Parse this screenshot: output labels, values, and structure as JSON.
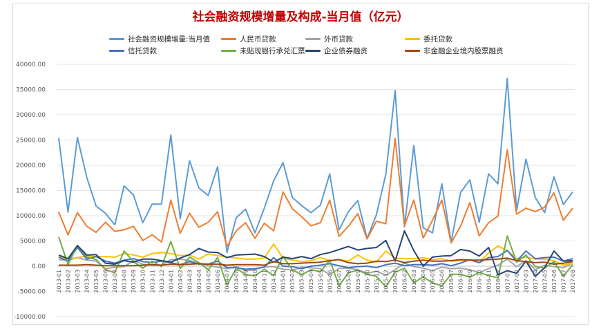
{
  "chart_data": {
    "type": "line",
    "title": "社会融资规模增量及构成-当月值（亿元）",
    "ylim": [
      -10000,
      40000
    ],
    "yticks": [
      "-10000.00",
      "-5000.00",
      "0.00",
      "5000.00",
      "10000.00",
      "15000.00",
      "20000.00",
      "25000.00",
      "30000.00",
      "35000.00",
      "40000.00"
    ],
    "ytick_values": [
      -10000,
      -5000,
      0,
      5000,
      10000,
      15000,
      20000,
      25000,
      30000,
      35000,
      40000
    ],
    "grid": true,
    "legend_position": "top",
    "categories": [
      "2013-01",
      "2013-02",
      "2013-03",
      "2013-04",
      "2013-05",
      "2013-06",
      "2013-07",
      "2013-08",
      "2013-09",
      "2013-10",
      "2013-11",
      "2013-12",
      "2014-01",
      "2014-02",
      "2014-03",
      "2014-04",
      "2014-05",
      "2014-06",
      "2014-07",
      "2014-08",
      "2014-09",
      "2014-10",
      "2014-11",
      "2014-12",
      "2015-01",
      "2015-02",
      "2015-03",
      "2015-04",
      "2015-05",
      "2015-06",
      "2015-07",
      "2015-08",
      "2015-09",
      "2015-10",
      "2015-11",
      "2015-12",
      "2016-01",
      "2016-02",
      "2016-03",
      "2016-04",
      "2016-05",
      "2016-06",
      "2016-07",
      "2016-08",
      "2016-09",
      "2016-10",
      "2016-11",
      "2016-12",
      "2017-01",
      "2017-02",
      "2017-03",
      "2017-04",
      "2017-05",
      "2017-06",
      "2017-07",
      "2017-08"
    ],
    "series": [
      {
        "name": "社会融资规模增量:当月值",
        "color": "#5b9bd5",
        "values": [
          25400,
          10700,
          25500,
          17600,
          11900,
          10500,
          8200,
          15900,
          14100,
          8600,
          12300,
          12300,
          26000,
          9400,
          20900,
          15500,
          14000,
          19700,
          2700,
          9600,
          11300,
          6600,
          11500,
          16900,
          20500,
          13600,
          12000,
          10600,
          12100,
          18300,
          7200,
          10800,
          13000,
          5500,
          10200,
          18200,
          34800,
          7800,
          23900,
          7600,
          6600,
          16300,
          4800,
          14600,
          17100,
          8700,
          18300,
          16300,
          37200,
          11000,
          21200,
          13600,
          10600,
          17700,
          12200,
          14700
        ]
      },
      {
        "name": "人民币贷款",
        "color": "#ed7d31",
        "values": [
          10700,
          6200,
          10600,
          7900,
          6700,
          8700,
          6900,
          7200,
          7900,
          5100,
          6200,
          4800,
          13100,
          6500,
          10500,
          7700,
          8700,
          10800,
          3900,
          7000,
          8600,
          5500,
          8500,
          7000,
          14700,
          11400,
          9800,
          8000,
          8600,
          13100,
          5900,
          7900,
          10400,
          5400,
          8900,
          8400,
          25300,
          8000,
          13100,
          5600,
          9100,
          13100,
          4600,
          7900,
          12600,
          6000,
          8600,
          9900,
          23100,
          10300,
          11500,
          10800,
          11700,
          14500,
          9100,
          11500
        ]
      },
      {
        "name": "外币贷款",
        "color": "#a5a5a5",
        "values": [
          1300,
          1200,
          1700,
          1200,
          1000,
          -500,
          -200,
          -100,
          1100,
          400,
          200,
          200,
          1300,
          1400,
          1100,
          600,
          100,
          -200,
          -500,
          -100,
          -900,
          -700,
          -100,
          -100,
          -600,
          -800,
          -200,
          -300,
          -500,
          -1700,
          -400,
          -400,
          -700,
          -1400,
          -1000,
          -1800,
          -700,
          600,
          -100,
          -400,
          -900,
          -200,
          -500,
          -400,
          -700,
          -1300,
          -500,
          200,
          1400,
          -100,
          1100,
          -700,
          200,
          -100,
          -300,
          600
        ]
      },
      {
        "name": "委托贷款",
        "color": "#ffc000",
        "values": [
          1900,
          1400,
          1700,
          2000,
          1900,
          1900,
          1800,
          2500,
          2200,
          1800,
          2500,
          2700,
          2500,
          2100,
          2200,
          1400,
          2400,
          2100,
          1800,
          1600,
          1400,
          1400,
          1600,
          4400,
          1600,
          1200,
          900,
          1100,
          1700,
          1100,
          1300,
          1000,
          2200,
          1200,
          800,
          3000,
          1600,
          1500,
          1500,
          1700,
          1300,
          1500,
          1000,
          1100,
          1200,
          700,
          2600,
          4000,
          3100,
          1500,
          1800,
          1400,
          1400,
          1100,
          200,
          600
        ]
      },
      {
        "name": "信托贷款",
        "color": "#4472c4",
        "values": [
          1800,
          1000,
          3700,
          1400,
          1900,
          1000,
          600,
          1200,
          1500,
          900,
          700,
          1000,
          700,
          300,
          900,
          400,
          400,
          1000,
          -300,
          -300,
          -600,
          -500,
          -200,
          1700,
          0,
          -100,
          -500,
          0,
          200,
          500,
          100,
          -300,
          -100,
          0,
          -300,
          300,
          600,
          100,
          300,
          300,
          200,
          500,
          100,
          600,
          1300,
          700,
          1700,
          1900,
          3100,
          1000,
          3000,
          1500,
          1700,
          1800,
          1000,
          1500
        ]
      },
      {
        "name": "未贴现银行承兑汇票",
        "color": "#70ad47",
        "values": [
          5800,
          300,
          4100,
          1800,
          1300,
          -700,
          -1300,
          3000,
          900,
          -400,
          1000,
          -100,
          4900,
          -500,
          1800,
          700,
          -700,
          1700,
          -3800,
          -400,
          -1700,
          -1900,
          -600,
          -1900,
          1900,
          -700,
          -1700,
          -700,
          -1100,
          1200,
          -3900,
          -1300,
          -800,
          -1600,
          -2000,
          -4100,
          -1200,
          -400,
          -3300,
          -2100,
          -3300,
          -3900,
          -1600,
          -1600,
          -2200,
          -1200,
          -1900,
          -2300,
          6000,
          800,
          2200,
          -100,
          -400,
          900,
          -2000,
          300
        ]
      },
      {
        "name": "企业债券融资",
        "color": "#264478",
        "values": [
          2200,
          1500,
          4100,
          2200,
          2300,
          600,
          400,
          1100,
          800,
          1400,
          1400,
          1100,
          800,
          1600,
          2300,
          3500,
          2800,
          2700,
          1700,
          2200,
          2300,
          2400,
          1900,
          800,
          1800,
          1500,
          1900,
          1500,
          2300,
          2700,
          3300,
          3900,
          3200,
          3500,
          3700,
          5100,
          1000,
          7000,
          3100,
          0,
          1800,
          2000,
          2100,
          3300,
          3000,
          2000,
          3700,
          -1700,
          -900,
          -1400,
          1000,
          -2000,
          -300,
          3000,
          1000,
          1100
        ]
      },
      {
        "name": "非金融企业境内股票融资",
        "color": "#9e480e",
        "values": [
          200,
          200,
          200,
          300,
          200,
          100,
          100,
          100,
          100,
          200,
          300,
          200,
          400,
          300,
          400,
          500,
          400,
          400,
          200,
          300,
          300,
          300,
          200,
          900,
          500,
          500,
          600,
          700,
          800,
          1100,
          1300,
          700,
          500,
          600,
          1000,
          900,
          1200,
          700,
          1000,
          1200,
          1000,
          1000,
          1100,
          1300,
          1200,
          1200,
          1300,
          1400,
          1600,
          1100,
          900,
          700,
          800,
          400,
          600,
          900
        ]
      }
    ]
  }
}
